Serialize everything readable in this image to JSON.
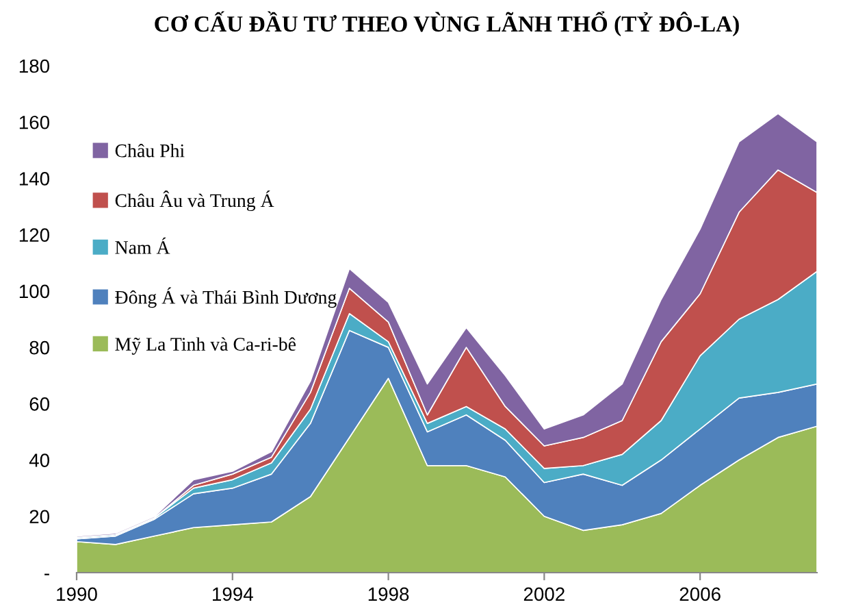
{
  "chart_data": {
    "type": "area",
    "stacked": true,
    "title": "CƠ CẤU ĐẦU TƯ THEO VÙNG LÃNH THỔ (TỶ ĐÔ-LA)",
    "x": [
      1990,
      1991,
      1992,
      1993,
      1994,
      1995,
      1996,
      1997,
      1998,
      1999,
      2000,
      2001,
      2002,
      2003,
      2004,
      2005,
      2006,
      2007,
      2008,
      2009
    ],
    "series": [
      {
        "name": "Mỹ La Tinh và Ca-ri-bê",
        "color": "#9bbb59",
        "values": [
          11,
          10,
          13,
          16,
          17,
          18,
          27,
          48,
          69,
          38,
          38,
          34,
          20,
          15,
          17,
          21,
          31,
          40,
          48,
          52
        ]
      },
      {
        "name": "Đông Á và Thái Bình Dương",
        "color": "#4f81bd",
        "values": [
          1,
          3,
          6,
          12,
          13,
          17,
          26,
          38,
          11,
          12,
          18,
          13,
          12,
          20,
          14,
          19,
          20,
          22,
          16,
          15
        ]
      },
      {
        "name": "Nam Á",
        "color": "#4bacc6",
        "values": [
          0.5,
          0.5,
          0.5,
          2,
          3,
          4,
          5,
          6,
          2,
          3,
          3,
          4,
          5,
          3,
          11,
          14,
          26,
          28,
          33,
          40
        ]
      },
      {
        "name": "Châu Âu và Trung Á",
        "color": "#c0504d",
        "values": [
          0,
          0,
          0,
          1,
          2,
          2,
          6,
          9,
          7,
          3,
          21,
          8,
          8,
          10,
          12,
          28,
          22,
          38,
          46,
          28
        ]
      },
      {
        "name": "Châu Phi",
        "color": "#8064a2",
        "values": [
          0.5,
          0.5,
          0.5,
          2,
          1,
          2,
          4,
          7,
          7,
          11,
          7,
          11,
          6,
          8,
          13,
          15,
          23,
          25,
          20,
          18
        ]
      }
    ],
    "xlim": [
      1990,
      2009
    ],
    "xticks": [
      1990,
      1994,
      1998,
      2002,
      2006
    ],
    "ylim": [
      0,
      180
    ],
    "yticks": [
      {
        "value": 0,
        "label": "-"
      },
      20,
      40,
      60,
      80,
      100,
      120,
      140,
      160,
      180
    ],
    "legend": "upper left",
    "grid": false
  }
}
